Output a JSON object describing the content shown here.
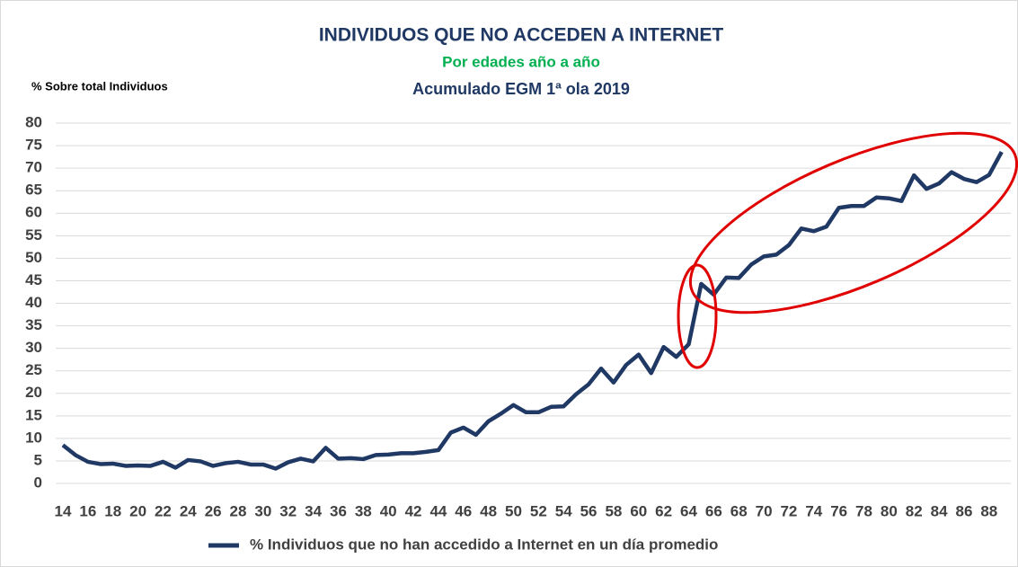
{
  "chart_data": {
    "type": "line",
    "title": "INDIVIDUOS QUE NO ACCEDEN A INTERNET",
    "subtitle": "Por edades año a año",
    "subtitle2": "Acumulado  EGM 1ª ola 2019",
    "y_label": "% Sobre total Individuos",
    "categories": [
      "14",
      null,
      "16",
      null,
      "18",
      null,
      "20",
      null,
      "22",
      null,
      "24",
      null,
      "26",
      null,
      "28",
      null,
      "30",
      null,
      "32",
      null,
      "34",
      null,
      "36",
      null,
      "38",
      null,
      "40",
      null,
      "42",
      null,
      "44",
      null,
      "46",
      null,
      "48",
      null,
      "50",
      null,
      "52",
      null,
      "54",
      null,
      "56",
      null,
      "58",
      null,
      "60",
      null,
      "62",
      null,
      "64",
      null,
      "66",
      null,
      "68",
      null,
      "70",
      null,
      "72",
      null,
      "74",
      null,
      "76",
      null,
      "78",
      null,
      "80",
      null,
      "82",
      null,
      "84",
      null,
      "86",
      null,
      "88",
      null
    ],
    "series": [
      {
        "name": "% Individuos que no han accedido a Internet en un día promedio",
        "color": "#1f3864",
        "values": [
          8.5,
          6.3,
          4.8,
          4.3,
          4.4,
          3.9,
          4.0,
          3.9,
          4.8,
          3.5,
          5.2,
          4.9,
          3.9,
          4.5,
          4.8,
          4.2,
          4.2,
          3.3,
          4.7,
          5.5,
          4.9,
          7.9,
          5.5,
          5.6,
          5.4,
          6.3,
          6.4,
          6.7,
          6.7,
          7.0,
          7.4,
          11.3,
          12.4,
          10.8,
          13.8,
          15.5,
          17.4,
          15.8,
          15.8,
          17.0,
          17.1,
          19.8,
          22.0,
          25.5,
          22.4,
          26.3,
          28.6,
          24.5,
          30.3,
          28.1,
          30.9,
          44.3,
          41.9,
          45.7,
          45.6,
          48.6,
          50.4,
          50.8,
          52.9,
          56.6,
          56.0,
          57.0,
          61.2,
          61.6,
          61.6,
          63.5,
          63.3,
          62.7,
          68.4,
          65.4,
          66.6,
          69.1,
          67.6,
          66.9,
          68.5,
          73.6
        ]
      }
    ],
    "ylim": [
      0,
      80
    ],
    "yticks": [
      0,
      5,
      10,
      15,
      20,
      25,
      30,
      35,
      40,
      45,
      50,
      55,
      60,
      65,
      70,
      75,
      80
    ],
    "grid": true,
    "legend": "bottom"
  }
}
